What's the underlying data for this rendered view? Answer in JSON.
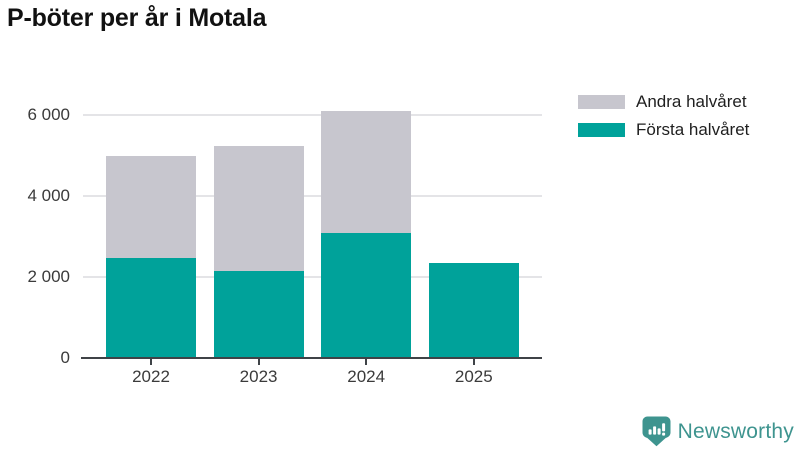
{
  "title": "P-böter per år i Motala",
  "legend": [
    {
      "label": "Andra halvåret",
      "color": "#c7c6ce"
    },
    {
      "label": "Första halvåret",
      "color": "#00a29a"
    }
  ],
  "chart_data": {
    "type": "bar",
    "stacked": true,
    "title": "P-böter per år i Motala",
    "xlabel": "",
    "ylabel": "",
    "categories": [
      "2022",
      "2023",
      "2024",
      "2025"
    ],
    "series": [
      {
        "name": "Första halvåret",
        "color": "#00a29a",
        "values": [
          2470,
          2140,
          3080,
          2340
        ]
      },
      {
        "name": "Andra halvåret",
        "color": "#c7c6ce",
        "values": [
          2530,
          3110,
          3030,
          0
        ]
      }
    ],
    "totals": [
      5000,
      5250,
      6110,
      2340
    ],
    "ylim": [
      0,
      6500
    ],
    "y_ticks": [
      {
        "value": 0,
        "label": "0"
      },
      {
        "value": 2000,
        "label": "2 000"
      },
      {
        "value": 4000,
        "label": "4 000"
      },
      {
        "value": 6000,
        "label": "6 000"
      }
    ],
    "grid": true,
    "legend_position": "top-right"
  },
  "footer": {
    "brand": "Newsworthy",
    "logo_icon": "speech-bubble-with-bars-and-exclamation",
    "logo_color": "#3e948f"
  },
  "colors": {
    "background": "#ffffff",
    "bar_first_half": "#00a29a",
    "bar_second_half": "#c7c6ce",
    "gridline": "#e4e4e7",
    "axis": "#3f4347",
    "axis_text": "#3b3b3b",
    "title_text": "#111111"
  }
}
